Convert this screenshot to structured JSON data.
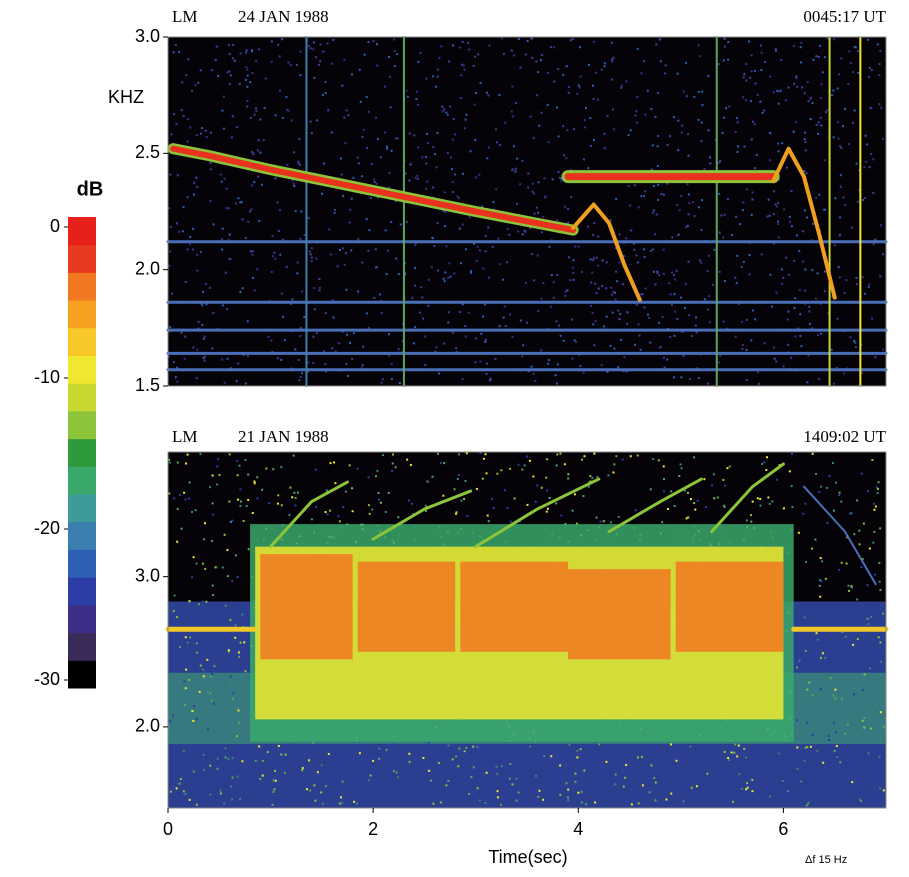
{
  "chart_data": [
    {
      "type": "colorbar",
      "title": "dB",
      "lim": [
        -30,
        0
      ],
      "ticks": [
        0,
        -10,
        -20,
        -30
      ],
      "colors": [
        "#000000",
        "#3a2a5a",
        "#3b2f8a",
        "#2d3da8",
        "#2c5fb5",
        "#3a7fb0",
        "#3f9a9a",
        "#3aa86a",
        "#2e9a3c",
        "#8cc43a",
        "#c8d830",
        "#f0e830",
        "#f8c828",
        "#f8a020",
        "#f07820",
        "#e83a1e",
        "#e8201a"
      ]
    },
    {
      "type": "spectrogram",
      "station": "LM",
      "date": "24 JAN 1988",
      "time": "0045:17 UT",
      "ylabel": "KHZ",
      "xlim": [
        0,
        7
      ],
      "ylim": [
        1.5,
        3.0
      ],
      "yticks": [
        {
          "value": 1.5,
          "label": "1.5"
        },
        {
          "value": 2.0,
          "label": "2.0"
        },
        {
          "value": 2.5,
          "label": "2.5"
        },
        {
          "value": 3.0,
          "label": "3.0"
        }
      ],
      "series": [
        {
          "color": "#4a6fb8",
          "width": 3,
          "x": [
            0,
            7
          ],
          "values": [
            2.12,
            2.12
          ]
        },
        {
          "color": "#4a6fb8",
          "width": 3,
          "x": [
            0,
            7
          ],
          "values": [
            1.86,
            1.86
          ]
        },
        {
          "color": "#4a6fb8",
          "width": 3,
          "x": [
            0,
            7
          ],
          "values": [
            1.74,
            1.74
          ]
        },
        {
          "color": "#4a6fb8",
          "width": 3,
          "x": [
            0,
            7
          ],
          "values": [
            1.64,
            1.64
          ]
        },
        {
          "color": "#4a6fb8",
          "width": 3,
          "x": [
            0,
            7
          ],
          "values": [
            1.57,
            1.57
          ]
        },
        {
          "color": "#3e7fa8",
          "width": 2,
          "x": [
            1.35,
            1.35
          ],
          "values": [
            1.5,
            3.0
          ]
        },
        {
          "color": "#5aa85a",
          "width": 2,
          "x": [
            2.3,
            2.3
          ],
          "values": [
            1.5,
            3.0
          ]
        },
        {
          "color": "#5aa85a",
          "width": 2,
          "x": [
            5.35,
            5.35
          ],
          "values": [
            1.5,
            3.0
          ]
        },
        {
          "color": "#c8d830",
          "width": 2,
          "x": [
            6.45,
            6.45
          ],
          "values": [
            1.5,
            3.0
          ]
        },
        {
          "color": "#f0e830",
          "width": 2,
          "x": [
            6.75,
            6.75
          ],
          "values": [
            1.5,
            3.0
          ]
        },
        {
          "color": "#8cc43a",
          "width": 11,
          "x": [
            0.05,
            0.4,
            1,
            2,
            3,
            3.95
          ],
          "values": [
            2.52,
            2.49,
            2.43,
            2.34,
            2.25,
            2.17
          ]
        },
        {
          "color": "#e8321e",
          "width": 6,
          "x": [
            0.05,
            0.4,
            1,
            2,
            3,
            3.95
          ],
          "values": [
            2.52,
            2.49,
            2.43,
            2.34,
            2.25,
            2.17
          ]
        },
        {
          "color": "#f0a020",
          "width": 4,
          "x": [
            3.95,
            4.15,
            4.3,
            4.45,
            4.6
          ],
          "values": [
            2.18,
            2.28,
            2.2,
            2.02,
            1.87
          ]
        },
        {
          "color": "#8cc43a",
          "width": 13,
          "x": [
            3.9,
            5.9
          ],
          "values": [
            2.4,
            2.4
          ]
        },
        {
          "color": "#e8321e",
          "width": 7,
          "x": [
            3.9,
            5.9
          ],
          "values": [
            2.4,
            2.4
          ]
        },
        {
          "color": "#f0a020",
          "width": 4,
          "x": [
            5.9,
            6.05,
            6.2,
            6.35,
            6.5
          ],
          "values": [
            2.38,
            2.52,
            2.4,
            2.15,
            1.88
          ]
        }
      ]
    },
    {
      "type": "spectrogram",
      "station": "LM",
      "date": "21 JAN 1988",
      "time": "1409:02 UT",
      "xlim": [
        0,
        7
      ],
      "ylim": [
        1.46,
        3.83
      ],
      "xticks": [
        0,
        2,
        4,
        6
      ],
      "yticks": [
        {
          "value": 2.0,
          "label": "2.0"
        },
        {
          "value": 3.0,
          "label": "3.0"
        }
      ],
      "xlabel": "Time(sec)",
      "note": "Δf 15 Hz",
      "regions": [
        {
          "color": "#3aa86a",
          "x": [
            0.8,
            6.1
          ],
          "y": [
            1.9,
            3.35
          ]
        },
        {
          "color": "#f0e830",
          "x": [
            0.85,
            6.0
          ],
          "y": [
            2.05,
            3.2
          ]
        },
        {
          "color": "#f07820",
          "x": [
            0.9,
            1.8
          ],
          "y": [
            2.45,
            3.15
          ]
        },
        {
          "color": "#f07820",
          "x": [
            1.85,
            2.8
          ],
          "y": [
            2.5,
            3.1
          ]
        },
        {
          "color": "#f07820",
          "x": [
            2.85,
            3.9
          ],
          "y": [
            2.5,
            3.1
          ]
        },
        {
          "color": "#f07820",
          "x": [
            3.9,
            4.9
          ],
          "y": [
            2.45,
            3.05
          ]
        },
        {
          "color": "#f07820",
          "x": [
            4.95,
            6.0
          ],
          "y": [
            2.5,
            3.1
          ]
        }
      ],
      "series": [
        {
          "color": "#f0c828",
          "width": 5,
          "x": [
            0,
            0.85
          ],
          "values": [
            2.65,
            2.65
          ]
        },
        {
          "color": "#f0c828",
          "width": 5,
          "x": [
            6.1,
            7
          ],
          "values": [
            2.65,
            2.65
          ]
        },
        {
          "color": "#8cc43a",
          "width": 3,
          "x": [
            1.0,
            1.4,
            1.75
          ],
          "values": [
            3.2,
            3.5,
            3.63
          ]
        },
        {
          "color": "#8cc43a",
          "width": 3,
          "x": [
            2.0,
            2.5,
            2.95
          ],
          "values": [
            3.25,
            3.45,
            3.57
          ]
        },
        {
          "color": "#8cc43a",
          "width": 3,
          "x": [
            3.0,
            3.6,
            4.2
          ],
          "values": [
            3.2,
            3.45,
            3.65
          ]
        },
        {
          "color": "#8cc43a",
          "width": 3,
          "x": [
            4.3,
            4.8,
            5.2
          ],
          "values": [
            3.3,
            3.5,
            3.65
          ]
        },
        {
          "color": "#8cc43a",
          "width": 3,
          "x": [
            5.3,
            5.7,
            6.0
          ],
          "values": [
            3.3,
            3.6,
            3.75
          ]
        },
        {
          "color": "#4a6fb8",
          "width": 2,
          "x": [
            6.2,
            6.6,
            6.9
          ],
          "values": [
            3.6,
            3.3,
            2.95
          ]
        }
      ]
    }
  ]
}
